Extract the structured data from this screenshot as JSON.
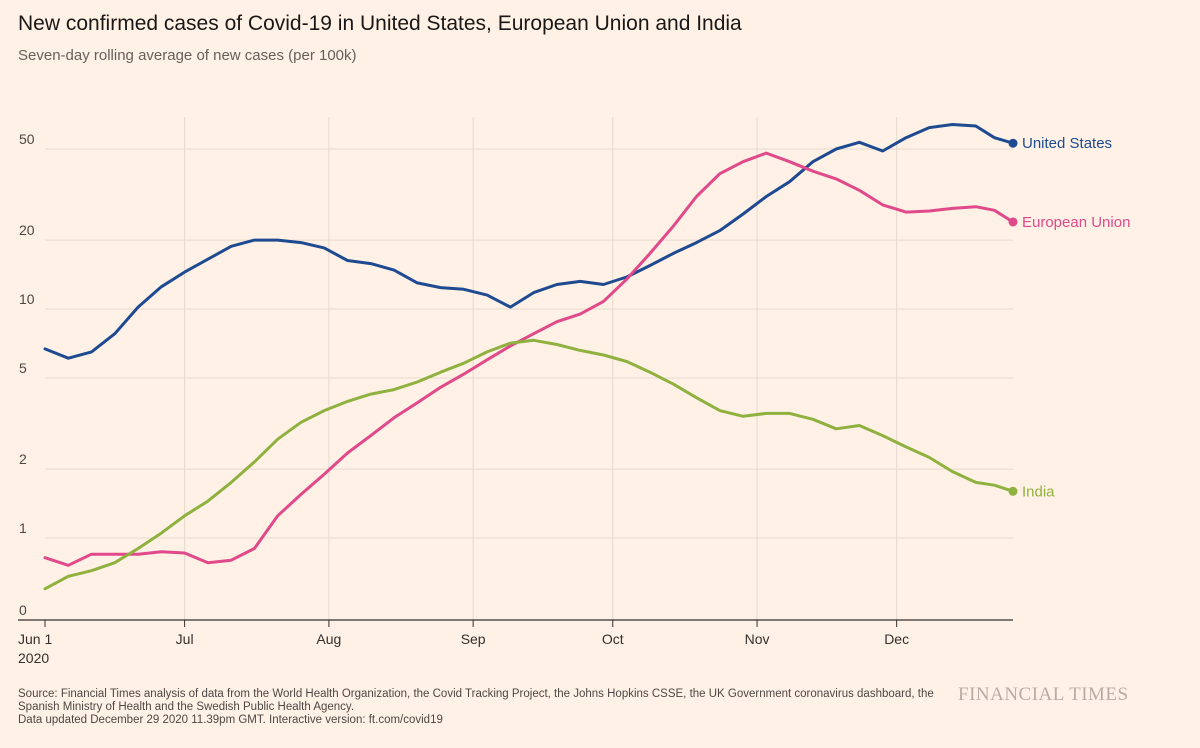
{
  "header": {
    "title": "New confirmed cases of Covid-19 in United States, European Union and India",
    "subtitle": "Seven-day rolling average of new cases (per 100k)"
  },
  "footer": {
    "source_line1": "Source: Financial Times analysis of data from the World Health Organization, the Covid Tracking Project, the Johns Hopkins CSSE, the UK Government coronavirus dashboard, the",
    "source_line2": "Spanish Ministry of Health and the Swedish Public Health Agency.",
    "updated": "Data updated December 29 2020 11.39pm GMT. Interactive version: ft.com/covid19",
    "brand": "FINANCIAL TIMES"
  },
  "chart_data": {
    "type": "line",
    "title": "New confirmed cases of Covid-19 in United States, European Union and India",
    "subtitle": "Seven-day rolling average of new cases (per 100k)",
    "xlabel": "",
    "ylabel": "",
    "y_scale": "log",
    "y_ticks": [
      0,
      1,
      2,
      5,
      10,
      20,
      50
    ],
    "y_tick_labels": [
      "0",
      "1",
      "2",
      "5",
      "10",
      "20",
      "50"
    ],
    "x_range_days": [
      0,
      208
    ],
    "x_ticks": [
      {
        "day": 0,
        "label": "Jun 1",
        "sublabel": "2020"
      },
      {
        "day": 30,
        "label": "Jul"
      },
      {
        "day": 61,
        "label": "Aug"
      },
      {
        "day": 92,
        "label": "Sep"
      },
      {
        "day": 122,
        "label": "Oct"
      },
      {
        "day": 153,
        "label": "Nov"
      },
      {
        "day": 183,
        "label": "Dec"
      }
    ],
    "grid": true,
    "series": [
      {
        "name": "United States",
        "color": "#1d4a91",
        "points": [
          [
            0,
            6.7
          ],
          [
            5,
            6.1
          ],
          [
            10,
            6.5
          ],
          [
            15,
            7.8
          ],
          [
            20,
            10.2
          ],
          [
            25,
            12.5
          ],
          [
            30,
            14.5
          ],
          [
            35,
            16.5
          ],
          [
            40,
            18.8
          ],
          [
            45,
            20.0
          ],
          [
            50,
            20.0
          ],
          [
            55,
            19.5
          ],
          [
            60,
            18.5
          ],
          [
            65,
            16.3
          ],
          [
            70,
            15.8
          ],
          [
            75,
            14.8
          ],
          [
            80,
            13.0
          ],
          [
            85,
            12.4
          ],
          [
            90,
            12.2
          ],
          [
            95,
            11.5
          ],
          [
            100,
            10.2
          ],
          [
            105,
            11.8
          ],
          [
            110,
            12.8
          ],
          [
            115,
            13.2
          ],
          [
            120,
            12.8
          ],
          [
            125,
            13.8
          ],
          [
            130,
            15.5
          ],
          [
            135,
            17.5
          ],
          [
            140,
            19.5
          ],
          [
            145,
            22.0
          ],
          [
            150,
            26.0
          ],
          [
            155,
            31.0
          ],
          [
            160,
            36.0
          ],
          [
            165,
            44.0
          ],
          [
            170,
            50.0
          ],
          [
            175,
            53.5
          ],
          [
            180,
            49.0
          ],
          [
            185,
            56.0
          ],
          [
            190,
            62.0
          ],
          [
            195,
            64.0
          ],
          [
            200,
            63.0
          ],
          [
            204,
            56.0
          ],
          [
            208,
            53.0
          ]
        ],
        "end_label": "United States"
      },
      {
        "name": "European Union",
        "color": "#e0498a",
        "points": [
          [
            0,
            0.82
          ],
          [
            5,
            0.76
          ],
          [
            10,
            0.85
          ],
          [
            20,
            0.85
          ],
          [
            25,
            0.87
          ],
          [
            30,
            0.86
          ],
          [
            35,
            0.78
          ],
          [
            40,
            0.8
          ],
          [
            45,
            0.9
          ],
          [
            50,
            1.25
          ],
          [
            55,
            1.55
          ],
          [
            60,
            1.9
          ],
          [
            65,
            2.35
          ],
          [
            70,
            2.8
          ],
          [
            75,
            3.35
          ],
          [
            80,
            3.9
          ],
          [
            85,
            4.55
          ],
          [
            90,
            5.2
          ],
          [
            95,
            6.0
          ],
          [
            100,
            6.9
          ],
          [
            105,
            7.8
          ],
          [
            110,
            8.8
          ],
          [
            115,
            9.5
          ],
          [
            120,
            10.8
          ],
          [
            125,
            13.5
          ],
          [
            130,
            17.5
          ],
          [
            135,
            23.0
          ],
          [
            140,
            31.0
          ],
          [
            145,
            39.0
          ],
          [
            150,
            44.0
          ],
          [
            155,
            48.0
          ],
          [
            160,
            44.0
          ],
          [
            165,
            40.0
          ],
          [
            170,
            37.0
          ],
          [
            175,
            33.0
          ],
          [
            180,
            28.5
          ],
          [
            185,
            26.5
          ],
          [
            190,
            26.8
          ],
          [
            195,
            27.5
          ],
          [
            200,
            28.0
          ],
          [
            204,
            27.0
          ],
          [
            208,
            24.0
          ]
        ],
        "end_label": "European Union"
      },
      {
        "name": "India",
        "color": "#8fb13f",
        "points": [
          [
            0,
            0.6
          ],
          [
            5,
            0.68
          ],
          [
            10,
            0.72
          ],
          [
            15,
            0.78
          ],
          [
            20,
            0.9
          ],
          [
            25,
            1.05
          ],
          [
            30,
            1.25
          ],
          [
            35,
            1.45
          ],
          [
            40,
            1.75
          ],
          [
            45,
            2.15
          ],
          [
            50,
            2.7
          ],
          [
            55,
            3.2
          ],
          [
            60,
            3.6
          ],
          [
            65,
            3.95
          ],
          [
            70,
            4.25
          ],
          [
            75,
            4.45
          ],
          [
            80,
            4.8
          ],
          [
            85,
            5.3
          ],
          [
            90,
            5.8
          ],
          [
            95,
            6.5
          ],
          [
            100,
            7.1
          ],
          [
            105,
            7.3
          ],
          [
            110,
            7.0
          ],
          [
            115,
            6.6
          ],
          [
            120,
            6.3
          ],
          [
            125,
            5.9
          ],
          [
            130,
            5.3
          ],
          [
            135,
            4.7
          ],
          [
            140,
            4.1
          ],
          [
            145,
            3.6
          ],
          [
            150,
            3.4
          ],
          [
            155,
            3.5
          ],
          [
            160,
            3.5
          ],
          [
            165,
            3.3
          ],
          [
            170,
            3.0
          ],
          [
            175,
            3.1
          ],
          [
            180,
            2.8
          ],
          [
            185,
            2.5
          ],
          [
            190,
            2.25
          ],
          [
            195,
            1.95
          ],
          [
            200,
            1.75
          ],
          [
            204,
            1.7
          ],
          [
            208,
            1.6
          ]
        ],
        "end_label": "India"
      }
    ]
  }
}
